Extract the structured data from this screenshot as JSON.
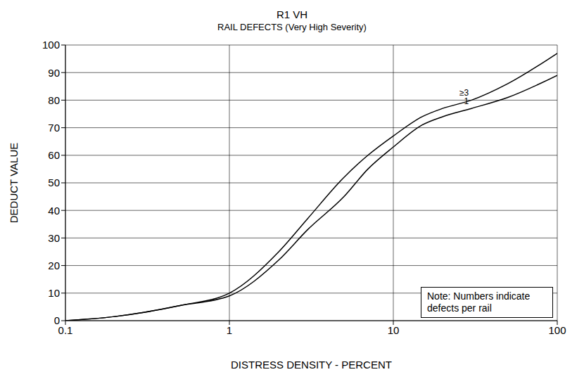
{
  "chart_data": {
    "type": "line",
    "title": "R1 VH",
    "subtitle": "RAIL DEFECTS (Very High Severity)",
    "x_label": "DISTRESS DENSITY - PERCENT",
    "y_label": "DEDUCT VALUE",
    "annotation": "Note: Numbers indicate defects per rail",
    "x": [
      0.1,
      0.2,
      0.3,
      0.5,
      1,
      2,
      3,
      5,
      7,
      10,
      15,
      20,
      30,
      50,
      100
    ],
    "series": [
      {
        "name": "≥3",
        "color": "#000000",
        "values": [
          0,
          1.5,
          3,
          5.5,
          10,
          25,
          37,
          52,
          60,
          67,
          74,
          77,
          80,
          86,
          97
        ]
      },
      {
        "name": "1",
        "color": "#000000",
        "values": [
          0,
          1.5,
          3,
          5.5,
          9,
          22,
          33,
          45,
          55,
          63,
          71,
          74,
          77,
          81,
          89
        ]
      }
    ],
    "xlim": [
      0.1,
      100
    ],
    "ylim": [
      0,
      100
    ],
    "xticks": [
      0.1,
      1,
      10,
      100
    ],
    "yticks": [
      0,
      10,
      20,
      30,
      40,
      50,
      60,
      70,
      80,
      90,
      100
    ],
    "log": "x",
    "grid": true,
    "marker": "none",
    "line_style": "solid"
  }
}
